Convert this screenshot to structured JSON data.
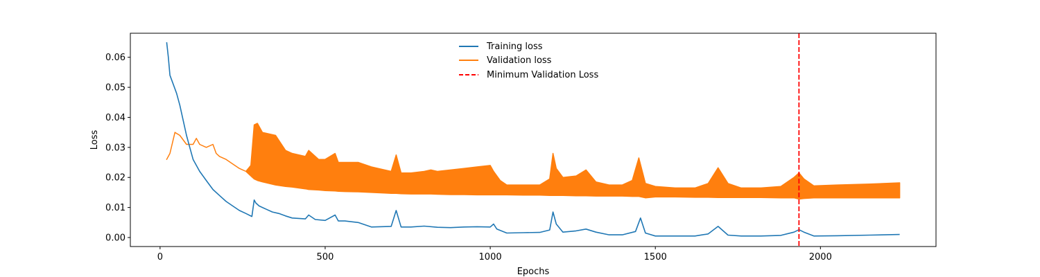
{
  "chart_data": {
    "type": "line",
    "title": "",
    "xlabel": "Epochs",
    "ylabel": "Loss",
    "xlim": [
      -90,
      2350
    ],
    "ylim": [
      -0.003,
      0.068
    ],
    "xticks": [
      0,
      500,
      1000,
      1500,
      2000
    ],
    "xtick_labels": [
      "0",
      "500",
      "1000",
      "1500",
      "2000"
    ],
    "yticks": [
      0.0,
      0.01,
      0.02,
      0.03,
      0.04,
      0.05,
      0.06
    ],
    "ytick_labels": [
      "0.00",
      "0.01",
      "0.02",
      "0.03",
      "0.04",
      "0.05",
      "0.06"
    ],
    "grid": false,
    "legend_position": "top-center",
    "series": [
      {
        "name": "Training loss",
        "color": "#1f77b4",
        "style": "solid",
        "x": [
          20,
          25,
          30,
          40,
          50,
          60,
          70,
          80,
          90,
          100,
          120,
          140,
          160,
          180,
          200,
          220,
          240,
          260,
          278,
          285,
          290,
          300,
          320,
          340,
          360,
          380,
          400,
          440,
          450,
          470,
          500,
          530,
          540,
          560,
          600,
          640,
          700,
          715,
          730,
          760,
          800,
          840,
          880,
          920,
          960,
          1000,
          1010,
          1020,
          1050,
          1100,
          1150,
          1180,
          1190,
          1200,
          1220,
          1260,
          1290,
          1320,
          1360,
          1400,
          1440,
          1455,
          1470,
          1500,
          1560,
          1620,
          1660,
          1690,
          1720,
          1760,
          1820,
          1880,
          1920,
          1935,
          1950,
          1980,
          2050,
          2150,
          2240
        ],
        "values": [
          0.065,
          0.06,
          0.054,
          0.051,
          0.048,
          0.044,
          0.039,
          0.034,
          0.03,
          0.026,
          0.022,
          0.019,
          0.016,
          0.014,
          0.012,
          0.0105,
          0.009,
          0.008,
          0.007,
          0.0125,
          0.0115,
          0.0105,
          0.0095,
          0.0085,
          0.008,
          0.0072,
          0.0065,
          0.0062,
          0.0075,
          0.006,
          0.0057,
          0.0075,
          0.0055,
          0.0055,
          0.005,
          0.0035,
          0.0037,
          0.009,
          0.0035,
          0.0035,
          0.0038,
          0.0034,
          0.0033,
          0.0035,
          0.0036,
          0.0035,
          0.0045,
          0.0028,
          0.0015,
          0.0016,
          0.0017,
          0.0025,
          0.0085,
          0.0045,
          0.0018,
          0.0022,
          0.0028,
          0.0018,
          0.0009,
          0.0009,
          0.002,
          0.0065,
          0.0015,
          0.0005,
          0.0005,
          0.0005,
          0.0012,
          0.0037,
          0.0008,
          0.0005,
          0.0005,
          0.0007,
          0.0018,
          0.0026,
          0.0018,
          0.0005,
          0.0006,
          0.0008,
          0.001
        ]
      },
      {
        "name": "Validation loss",
        "color": "#ff7f0e",
        "style": "band",
        "x": [
          20,
          30,
          45,
          60,
          80,
          100,
          110,
          120,
          140,
          160,
          170,
          180,
          200,
          220,
          240,
          260,
          275,
          285,
          295,
          310,
          330,
          350,
          380,
          400,
          440,
          450,
          480,
          500,
          530,
          540,
          560,
          600,
          640,
          680,
          700,
          715,
          730,
          760,
          800,
          820,
          840,
          880,
          920,
          960,
          1000,
          1010,
          1030,
          1050,
          1100,
          1150,
          1180,
          1190,
          1200,
          1220,
          1260,
          1290,
          1320,
          1360,
          1400,
          1430,
          1450,
          1470,
          1500,
          1560,
          1620,
          1660,
          1690,
          1720,
          1760,
          1820,
          1880,
          1920,
          1935,
          1950,
          1980,
          2050,
          2150,
          2240
        ],
        "upper": [
          0.026,
          0.028,
          0.035,
          0.034,
          0.031,
          0.031,
          0.033,
          0.031,
          0.03,
          0.031,
          0.028,
          0.027,
          0.026,
          0.0245,
          0.023,
          0.022,
          0.024,
          0.0375,
          0.038,
          0.035,
          0.0345,
          0.034,
          0.029,
          0.028,
          0.027,
          0.029,
          0.026,
          0.026,
          0.028,
          0.025,
          0.025,
          0.025,
          0.0235,
          0.0225,
          0.022,
          0.0275,
          0.0215,
          0.0215,
          0.022,
          0.0225,
          0.022,
          0.0225,
          0.023,
          0.0235,
          0.024,
          0.022,
          0.019,
          0.0175,
          0.0175,
          0.0175,
          0.0195,
          0.028,
          0.023,
          0.02,
          0.0205,
          0.0225,
          0.0185,
          0.0175,
          0.0175,
          0.019,
          0.0265,
          0.018,
          0.017,
          0.0165,
          0.0165,
          0.018,
          0.0232,
          0.018,
          0.0165,
          0.0165,
          0.017,
          0.02,
          0.0215,
          0.0195,
          0.0172,
          0.0175,
          0.0178,
          0.0182
        ],
        "lower": [
          0.026,
          0.028,
          0.035,
          0.034,
          0.031,
          0.031,
          0.033,
          0.031,
          0.03,
          0.031,
          0.028,
          0.027,
          0.026,
          0.0245,
          0.023,
          0.022,
          0.0205,
          0.0195,
          0.019,
          0.0185,
          0.018,
          0.0175,
          0.017,
          0.0168,
          0.0162,
          0.016,
          0.0158,
          0.0156,
          0.0155,
          0.0154,
          0.0153,
          0.0152,
          0.015,
          0.0148,
          0.0147,
          0.0147,
          0.0146,
          0.0145,
          0.0145,
          0.0145,
          0.0144,
          0.0143,
          0.0143,
          0.0142,
          0.0142,
          0.0142,
          0.0142,
          0.0142,
          0.0141,
          0.0141,
          0.014,
          0.014,
          0.014,
          0.014,
          0.0139,
          0.0139,
          0.0138,
          0.0138,
          0.0138,
          0.0137,
          0.0137,
          0.0132,
          0.0135,
          0.0135,
          0.0134,
          0.0134,
          0.0133,
          0.0133,
          0.0133,
          0.0133,
          0.0132,
          0.0132,
          0.0128,
          0.013,
          0.0132,
          0.0132,
          0.0132,
          0.0132
        ]
      }
    ],
    "vline": {
      "name": "Minimum Validation Loss",
      "x": 1935,
      "color": "#ff0000",
      "style": "dashed"
    }
  }
}
